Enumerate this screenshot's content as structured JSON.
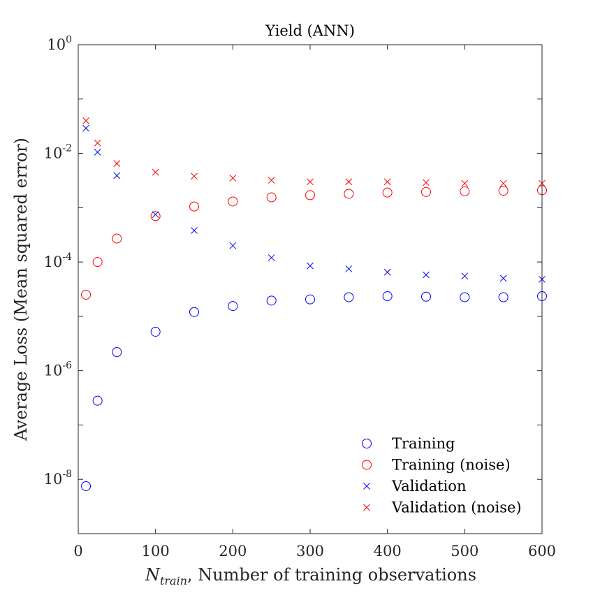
{
  "chart_data": {
    "type": "scatter",
    "title": "Yield (ANN)",
    "xlabel_main": "N",
    "xlabel_sub": "train",
    "xlabel_rest": ", Number of training observations",
    "ylabel": "Average Loss (Mean squared error)",
    "xlim": [
      0,
      600
    ],
    "ylim": [
      1e-09,
      1
    ],
    "yscale": "log",
    "x_ticks": [
      "0",
      "100",
      "200",
      "300",
      "400",
      "500",
      "600"
    ],
    "y_ticks": [
      {
        "base": "10",
        "exp": "0"
      },
      {
        "base": "10",
        "exp": "-2"
      },
      {
        "base": "10",
        "exp": "-4"
      },
      {
        "base": "10",
        "exp": "-6"
      },
      {
        "base": "10",
        "exp": "-8"
      }
    ],
    "legend_position": "bottom-right",
    "x": [
      10,
      25,
      50,
      100,
      150,
      200,
      250,
      300,
      350,
      400,
      450,
      500,
      550,
      600
    ],
    "series": [
      {
        "name": "Training",
        "marker": "circle",
        "color": "#0000ff",
        "values": [
          7.5e-09,
          2.8e-07,
          2.2e-06,
          5.2e-06,
          1.2e-05,
          1.55e-05,
          1.95e-05,
          2.05e-05,
          2.25e-05,
          2.35e-05,
          2.3e-05,
          2.25e-05,
          2.25e-05,
          2.35e-05
        ]
      },
      {
        "name": "Training (noise)",
        "marker": "circle",
        "color": "#ff0000",
        "values": [
          2.5e-05,
          0.0001,
          0.00027,
          0.0007,
          0.00105,
          0.0013,
          0.00155,
          0.0017,
          0.0018,
          0.0019,
          0.00195,
          0.002,
          0.00205,
          0.0021
        ]
      },
      {
        "name": "Validation",
        "marker": "x",
        "color": "#0000ff",
        "values": [
          0.029,
          0.0105,
          0.0039,
          0.00075,
          0.00038,
          0.0002,
          0.00012,
          8.5e-05,
          7.5e-05,
          6.5e-05,
          5.8e-05,
          5.5e-05,
          5e-05,
          4.8e-05
        ]
      },
      {
        "name": "Validation (noise)",
        "marker": "x",
        "color": "#ff0000",
        "values": [
          0.04,
          0.0155,
          0.0065,
          0.0045,
          0.0038,
          0.0035,
          0.0032,
          0.003,
          0.003,
          0.003,
          0.0029,
          0.0028,
          0.0028,
          0.0028
        ]
      }
    ]
  }
}
